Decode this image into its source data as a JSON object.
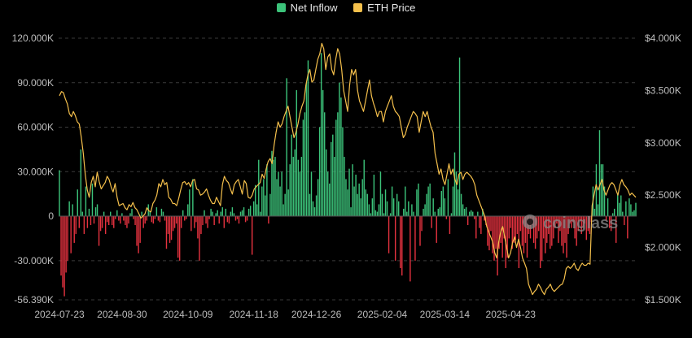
{
  "legend": {
    "inflow_label": "Net Inflow",
    "price_label": "ETH Price"
  },
  "colors": {
    "positive": "#3cc37a",
    "negative": "#e5323f",
    "price": "#f5c04c",
    "grid": "#3a3a3a"
  },
  "watermark": "coinglass",
  "chart_data": {
    "type": "bar",
    "title": "",
    "xlabel": "",
    "ylabel": "",
    "ylim": [
      -56390,
      120000
    ],
    "y2lim": [
      1500,
      4000
    ],
    "y_ticks": [
      "120.000K",
      "90.000K",
      "60.000K",
      "30.000K",
      "0",
      "-30.000K",
      "-56.390K"
    ],
    "y_tick_values": [
      120000,
      90000,
      60000,
      30000,
      0,
      -30000,
      -56390
    ],
    "y2_ticks": [
      "$4.000K",
      "$3.500K",
      "$3.000K",
      "$2.500K",
      "$2.000K",
      "$1.500K"
    ],
    "y2_tick_values": [
      4000,
      3500,
      3000,
      2500,
      2000,
      1500
    ],
    "x_ticks": [
      "2024-07-23",
      "2024-08-30",
      "2024-10-09",
      "2024-11-18",
      "2024-12-26",
      "2025-02-04",
      "2025-03-14",
      "2025-04-23"
    ],
    "x_tick_index": [
      0,
      38,
      78,
      118,
      156,
      196,
      234,
      274
    ],
    "start_date": "2024-07-23",
    "series": [
      {
        "name": "Net Inflow",
        "type": "bar",
        "values": [
          31000,
          -40000,
          -48000,
          -54000,
          -38000,
          -30000,
          10000,
          -25000,
          8000,
          -18000,
          -12000,
          18000,
          -8000,
          45000,
          3000,
          -12000,
          20000,
          -8000,
          5000,
          -6000,
          22000,
          -5000,
          6000,
          8000,
          -20000,
          -10000,
          -8000,
          3000,
          -12000,
          -4000,
          -6000,
          3000,
          -6000,
          -8000,
          -2000,
          4000,
          -3000,
          -5000,
          2000,
          -3000,
          -6000,
          -8000,
          -5000,
          2000,
          5000,
          -2000,
          -6000,
          -20000,
          -25000,
          -18000,
          3000,
          -8000,
          -5000,
          -3000,
          8000,
          3000,
          -4000,
          -5000,
          -2000,
          6000,
          -3000,
          -4000,
          5000,
          3000,
          -3000,
          -22000,
          -12000,
          -18000,
          -16000,
          -10000,
          -8000,
          -5000,
          -28000,
          -30000,
          -8000,
          4000,
          -3000,
          -2000,
          8000,
          18000,
          -10000,
          25000,
          -8000,
          -4000,
          -15000,
          -30000,
          -12000,
          -6000,
          4000,
          -5000,
          -8000,
          -2000,
          5000,
          3000,
          -6000,
          2000,
          4000,
          -5000,
          3000,
          6000,
          -8000,
          5000,
          -4000,
          -5000,
          3000,
          6000,
          2000,
          -3000,
          -2000,
          -5000,
          3000,
          4000,
          6000,
          -4000,
          -3000,
          5000,
          7000,
          -26000,
          10000,
          21000,
          8000,
          38000,
          3000,
          20000,
          25000,
          14000,
          35000,
          -5000,
          15000,
          44000,
          38000,
          40000,
          25000,
          30000,
          20000,
          30000,
          8000,
          15000,
          93000,
          18000,
          35000,
          55000,
          40000,
          45000,
          85000,
          38000,
          30000,
          40000,
          65000,
          70000,
          90000,
          105000,
          15000,
          30000,
          10000,
          6000,
          14000,
          25000,
          60000,
          110000,
          85000,
          70000,
          45000,
          30000,
          22000,
          50000,
          55000,
          40000,
          65000,
          70000,
          90000,
          80000,
          60000,
          40000,
          25000,
          18000,
          32000,
          6000,
          35000,
          20000,
          28000,
          15000,
          22000,
          12000,
          25000,
          38000,
          18000,
          15000,
          8000,
          2000,
          12000,
          28000,
          4000,
          3000,
          8000,
          30000,
          15000,
          2000,
          18000,
          10000,
          -25000,
          2000,
          20000,
          12000,
          -30000,
          15000,
          10000,
          -35000,
          -40000,
          5000,
          20000,
          3000,
          10000,
          -44000,
          8000,
          3000,
          -30000,
          18000,
          22000,
          -20000,
          -10000,
          5000,
          8000,
          15000,
          20000,
          22000,
          -8000,
          12000,
          3000,
          -18000,
          5000,
          6000,
          17000,
          20000,
          12000,
          -2000,
          25000,
          -12000,
          2000,
          20000,
          43000,
          30000,
          18000,
          107000,
          15000,
          8000,
          5000,
          6000,
          -6000,
          3000,
          4000,
          3000,
          -2000,
          -15000,
          3000,
          -8000,
          -12000,
          5000,
          -3000,
          -6000,
          -20000,
          -23000,
          -10000,
          -25000,
          -30000,
          -22000,
          -40000,
          -22000,
          -18000,
          -28000,
          -15000,
          -35000,
          -28000,
          -15000,
          -8000,
          -22000,
          -18000,
          -16000,
          -12000,
          -35000,
          -10000,
          -20000,
          -25000,
          -18000,
          -28000,
          -12000,
          -15000,
          -6000,
          -18000,
          -22000,
          -15000,
          -10000,
          -35000,
          -30000,
          -15000,
          -25000,
          -18000,
          -12000,
          -22000,
          -20000,
          -15000,
          -8000,
          -5000,
          -18000,
          -10000,
          -20000,
          -25000,
          -18000,
          -28000,
          -12000,
          -5000,
          -8000,
          -4000,
          -15000,
          -20000,
          -10000,
          -3000,
          -12000,
          -8000,
          -5000,
          -16000,
          -10000,
          -12000,
          -4000,
          20000,
          5000,
          35000,
          8000,
          58000,
          35000,
          35000,
          20000,
          -3000,
          12000,
          -8000,
          -10000,
          2000,
          5000,
          -18000,
          15000,
          9000,
          14000,
          3000,
          -6000,
          10000,
          -15000,
          12000,
          8000,
          3000,
          4000,
          9000
        ],
        "note_values_are_daily_net_inflows": ""
      },
      {
        "name": "ETH Price",
        "type": "line",
        "values": [
          3450,
          3490,
          3480,
          3420,
          3370,
          3280,
          3250,
          3300,
          3260,
          3200,
          3180,
          3050,
          2900,
          2700,
          2550,
          2480,
          2620,
          2680,
          2580,
          2720,
          2630,
          2560,
          2590,
          2620,
          2680,
          2650,
          2580,
          2530,
          2610,
          2480,
          2400,
          2410,
          2420,
          2380,
          2360,
          2410,
          2390,
          2430,
          2380,
          2360,
          2320,
          2280,
          2300,
          2320,
          2380,
          2350,
          2340,
          2420,
          2450,
          2500,
          2610,
          2580,
          2650,
          2600,
          2620,
          2480,
          2460,
          2420,
          2420,
          2400,
          2470,
          2550,
          2620,
          2630,
          2600,
          2620,
          2580,
          2640,
          2650,
          2560,
          2550,
          2500,
          2510,
          2530,
          2560,
          2500,
          2450,
          2420,
          2420,
          2480,
          2440,
          2400,
          2600,
          2680,
          2640,
          2620,
          2560,
          2510,
          2600,
          2630,
          2650,
          2580,
          2510,
          2640,
          2610,
          2480,
          2470,
          2500,
          2560,
          2580,
          2600,
          2620,
          2700,
          2660,
          2750,
          2820,
          2850,
          2800,
          2980,
          3100,
          3200,
          3150,
          3180,
          3250,
          3300,
          3350,
          3250,
          3150,
          3050,
          3100,
          3180,
          3280,
          3350,
          3400,
          3550,
          3650,
          3700,
          3580,
          3600,
          3700,
          3800,
          3850,
          3950,
          3900,
          3700,
          3820,
          3850,
          3700,
          3650,
          3800,
          3900,
          3850,
          3700,
          3500,
          3400,
          3300,
          3550,
          3700,
          3650,
          3700,
          3500,
          3400,
          3350,
          3300,
          3400,
          3500,
          3600,
          3450,
          3380,
          3320,
          3250,
          3300,
          3300,
          3200,
          3300,
          3350,
          3400,
          3450,
          3350,
          3300,
          3280,
          3250,
          3150,
          3050,
          3080,
          3150,
          3200,
          3250,
          3300,
          3280,
          3250,
          3100,
          3200,
          3300,
          3250,
          3300,
          3220,
          3150,
          3100,
          2900,
          2800,
          2700,
          2750,
          2650,
          2600,
          2700,
          2800,
          2700,
          2750,
          2650,
          2600,
          2700,
          2720,
          2650,
          2700,
          2720,
          2700,
          2680,
          2650,
          2600,
          2500,
          2450,
          2400,
          2350,
          2300,
          2200,
          2150,
          2100,
          2050,
          1950,
          1900,
          2050,
          2150,
          2200,
          2100,
          2000,
          1900,
          1950,
          2050,
          2100,
          2000,
          2080,
          2000,
          1900,
          1850,
          1800,
          1650,
          1600,
          1550,
          1580,
          1600,
          1650,
          1620,
          1580,
          1550,
          1600,
          1620,
          1650,
          1600,
          1580,
          1600,
          1620,
          1640,
          1650,
          1700,
          1800,
          1820,
          1800,
          1820,
          1850,
          1800,
          1780,
          1820,
          1850,
          1830,
          1830,
          1850,
          1840,
          2400,
          2500,
          2600,
          2550,
          2600,
          2650,
          2550,
          2500,
          2550,
          2600,
          2620,
          2600,
          2550,
          2500,
          2600,
          2650,
          2600,
          2580,
          2550,
          2500,
          2520,
          2500,
          2480
        ],
        "note_values_are_daily_usd": ""
      }
    ]
  }
}
